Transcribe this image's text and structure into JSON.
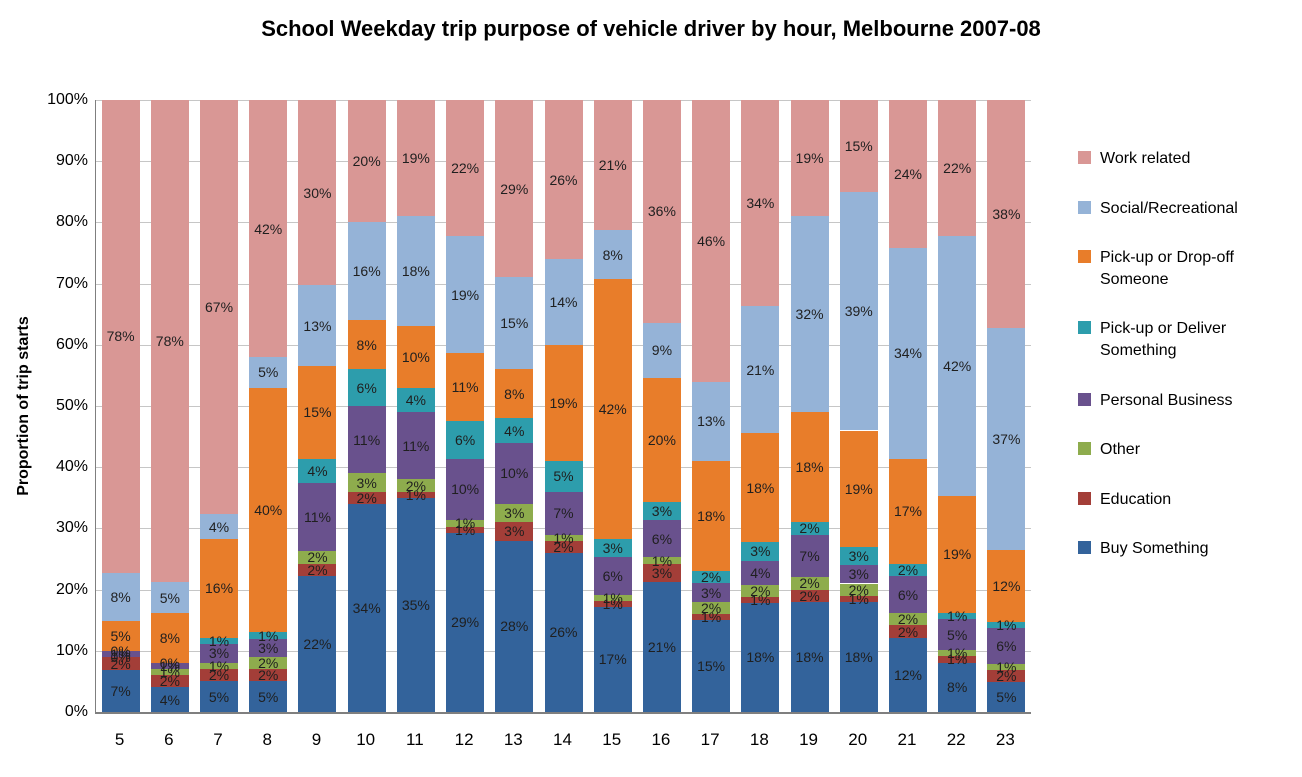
{
  "chart_data": {
    "type": "bar",
    "stacking": "percent",
    "title": "School Weekday trip purpose of vehicle driver by hour, Melbourne 2007-08",
    "xlabel": "",
    "ylabel": "Proportion of trip starts",
    "ylim": [
      0,
      100
    ],
    "grid": "horizontal",
    "legend_position": "right",
    "label_suffix": "%",
    "y_ticks": [
      "0%",
      "10%",
      "20%",
      "30%",
      "40%",
      "50%",
      "60%",
      "70%",
      "80%",
      "90%",
      "100%"
    ],
    "categories": [
      "5",
      "6",
      "7",
      "8",
      "9",
      "10",
      "11",
      "12",
      "13",
      "14",
      "15",
      "16",
      "17",
      "18",
      "19",
      "20",
      "21",
      "22",
      "23"
    ],
    "series": [
      {
        "name": "Buy Something",
        "color": "#33639B",
        "values": [
          7,
          4,
          5,
          5,
          22,
          34,
          35,
          29,
          28,
          26,
          17,
          21,
          15,
          18,
          18,
          18,
          12,
          8,
          5
        ]
      },
      {
        "name": "Education",
        "color": "#A33E38",
        "values": [
          2,
          2,
          2,
          2,
          2,
          2,
          1,
          1,
          3,
          2,
          1,
          3,
          1,
          1,
          2,
          1,
          2,
          1,
          2
        ]
      },
      {
        "name": "Other",
        "color": "#8EAC4D",
        "values": [
          0,
          1,
          1,
          2,
          2,
          3,
          2,
          1,
          3,
          1,
          1,
          1,
          2,
          2,
          2,
          2,
          2,
          1,
          1
        ]
      },
      {
        "name": "Personal Business",
        "color": "#69518D",
        "values": [
          1,
          1,
          3,
          3,
          11,
          11,
          11,
          10,
          10,
          7,
          6,
          6,
          3,
          4,
          7,
          3,
          6,
          5,
          6
        ]
      },
      {
        "name": "Pick-up or Deliver Something",
        "color": "#2D9DAC",
        "values": [
          0,
          0,
          1,
          1,
          4,
          6,
          4,
          6,
          4,
          5,
          3,
          3,
          2,
          3,
          2,
          3,
          2,
          1,
          1
        ]
      },
      {
        "name": "Pick-up or Drop-off Someone",
        "color": "#E87D2A",
        "values": [
          5,
          8,
          16,
          40,
          15,
          8,
          10,
          11,
          8,
          19,
          42,
          20,
          18,
          18,
          18,
          19,
          17,
          19,
          12
        ]
      },
      {
        "name": "Social/Recreational",
        "color": "#95B3D7",
        "values": [
          8,
          5,
          4,
          5,
          13,
          16,
          18,
          19,
          15,
          14,
          8,
          9,
          13,
          21,
          32,
          39,
          34,
          42,
          37
        ]
      },
      {
        "name": "Work related",
        "color": "#D99795",
        "values": [
          78,
          78,
          67,
          42,
          30,
          20,
          19,
          22,
          29,
          26,
          21,
          36,
          46,
          34,
          19,
          15,
          24,
          22,
          38
        ]
      }
    ],
    "legend_order": [
      "Work related",
      "Social/Recreational",
      "Pick-up or Drop-off Someone",
      "Pick-up or Deliver Something",
      "Personal Business",
      "Other",
      "Education",
      "Buy Something"
    ]
  }
}
